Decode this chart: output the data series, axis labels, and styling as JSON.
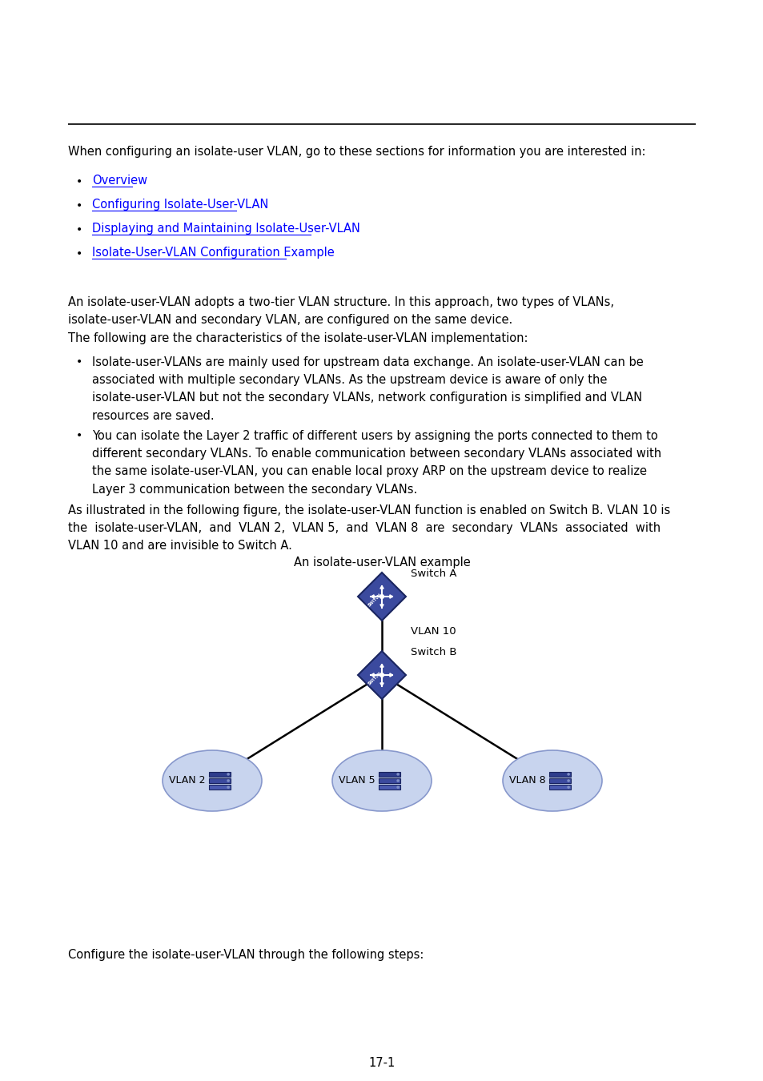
{
  "bg_color": "#ffffff",
  "intro_text": "When configuring an isolate-user VLAN, go to these sections for information you are interested in:",
  "bullet_links": [
    "Overview",
    "Configuring Isolate-User-VLAN",
    "Displaying and Maintaining Isolate-User-VLAN",
    "Isolate-User-VLAN Configuration Example"
  ],
  "link_color": "#0000FF",
  "bullet_color": "#000000",
  "overview_para1": "An isolate-user-VLAN adopts a two-tier VLAN structure. In this approach, two types of VLANs,\nisolate-user-VLAN and secondary VLAN, are configured on the same device.",
  "overview_para2": "The following are the characteristics of the isolate-user-VLAN implementation:",
  "bullet1": "Isolate-user-VLANs are mainly used for upstream data exchange. An isolate-user-VLAN can be\nassociated with multiple secondary VLANs. As the upstream device is aware of only the\nisolate-user-VLAN but not the secondary VLANs, network configuration is simplified and VLAN\nresources are saved.",
  "bullet2": "You can isolate the Layer 2 traffic of different users by assigning the ports connected to them to\ndifferent secondary VLANs. To enable communication between secondary VLANs associated with\nthe same isolate-user-VLAN, you can enable local proxy ARP on the upstream device to realize\nLayer 3 communication between the secondary VLANs.",
  "para_after": "As illustrated in the following figure, the isolate-user-VLAN function is enabled on Switch B. VLAN 10 is\nthe  isolate-user-VLAN,  and  VLAN 2,  VLAN 5,  and  VLAN 8  are  secondary  VLANs  associated  with\nVLAN 10 and are invisible to Switch A.",
  "diagram_title": "An isolate-user-VLAN example",
  "switch_color": "#3B4A9E",
  "switch_edge_color": "#1A2560",
  "ellipse_fill": "#C8D4EE",
  "ellipse_edge": "#8898CC",
  "line_color": "#000000",
  "text_color": "#000000",
  "footer_text": "Configure the isolate-user-VLAN through the following steps:",
  "page_number": "17-1",
  "vlan_labels": [
    "VLAN 2",
    "VLAN 5",
    "VLAN 8"
  ],
  "switchA_label": "Switch A",
  "switchB_label": "Switch B",
  "vlan10_label": "VLAN 10"
}
